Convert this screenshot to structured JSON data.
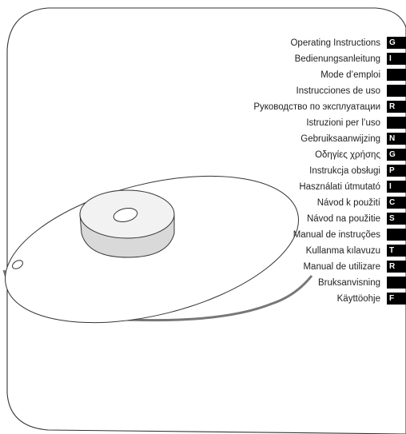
{
  "languages": [
    {
      "label": "Operating Instructions",
      "code": "G"
    },
    {
      "label": "Bedienungsanleitung",
      "code": "I"
    },
    {
      "label": "Mode d’emploi",
      "code": ""
    },
    {
      "label": "Instrucciones de uso",
      "code": ""
    },
    {
      "label": "Руководство по эксплуатации",
      "code": "R"
    },
    {
      "label": "Istruzioni per l’uso",
      "code": ""
    },
    {
      "label": "Gebruiksaanwijzing",
      "code": "N"
    },
    {
      "label": "Οδηγίες χρήσης",
      "code": "G"
    },
    {
      "label": "Instrukcja obsługi",
      "code": "P"
    },
    {
      "label": "Használati útmutató",
      "code": "I"
    },
    {
      "label": "Návod k použití",
      "code": "C"
    },
    {
      "label": "Návod na použitie",
      "code": "S"
    },
    {
      "label": "Manual de instruções",
      "code": ""
    },
    {
      "label": "Kullanma kılavuzu",
      "code": "T"
    },
    {
      "label": "Manual de utilizare",
      "code": "R"
    },
    {
      "label": "Bruksanvisning",
      "code": ""
    },
    {
      "label": "Käyttöohje",
      "code": "F"
    }
  ],
  "colors": {
    "ink": "#222222",
    "tab": "#000000",
    "page": "#ffffff"
  }
}
